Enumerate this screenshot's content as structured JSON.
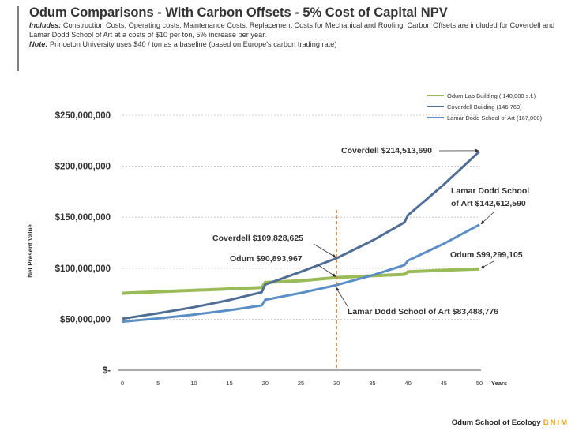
{
  "header": {
    "title": "Odum Comparisons - With Carbon Offsets - 5% Cost of Capital NPV",
    "includes_label": "Includes:",
    "includes_text": " Construction Costs, Operating costs, Maintenance Costs, Replacement Costs for Mechanical and Roofing. Carbon Offsets are included for Coverdell and Lamar Dodd School of Art at a costs of $10 per ton, 5% increase per year.",
    "note_label": "Note:",
    "note_text": " Princeton University uses $40 / ton as a baseline (based on Europe's carbon trading rate)"
  },
  "footer": {
    "org": "Odum School of Ecology",
    "brand": "BNIM"
  },
  "colors": {
    "odum": "#9bbb59",
    "coverdell": "#4f6d95",
    "lamar": "#5b8ec6",
    "marker": "#e07b2a",
    "grid": "#bdbdbd"
  },
  "chart_data": {
    "type": "line",
    "xlabel": "Years",
    "ylabel": "Net Present Value",
    "xlim": [
      0,
      50
    ],
    "ylim": [
      0,
      250000000
    ],
    "x_ticks": [
      "0",
      "5",
      "10",
      "15",
      "20",
      "25",
      "30",
      "35",
      "40",
      "45",
      "50"
    ],
    "y_ticks": [
      {
        "value": 250000000,
        "label": "$250,000,000"
      },
      {
        "value": 200000000,
        "label": "$200,000,000"
      },
      {
        "value": 150000000,
        "label": "$150,000,000"
      },
      {
        "value": 100000000,
        "label": "$100,000,000"
      },
      {
        "value": 50000000,
        "label": "$50,000,000"
      },
      {
        "value": 0,
        "label": "$-"
      }
    ],
    "grid": "horizontal-dashed",
    "legend_position": "top-right",
    "reference_line": {
      "x": 30,
      "style": "dashed"
    },
    "series": [
      {
        "name": "Odum Lab Building ( 140,000 s.f.)",
        "color_key": "odum",
        "points": [
          [
            0,
            75500000
          ],
          [
            5,
            76900000
          ],
          [
            10,
            78300000
          ],
          [
            15,
            79700000
          ],
          [
            19.5,
            81000000
          ],
          [
            20,
            86000000
          ],
          [
            25,
            87800000
          ],
          [
            30,
            90893967
          ],
          [
            35,
            92600000
          ],
          [
            39.5,
            94000000
          ],
          [
            40,
            96500000
          ],
          [
            45,
            98000000
          ],
          [
            50,
            99299105
          ]
        ]
      },
      {
        "name": "Coverdell Building (146,769)",
        "color_key": "coverdell",
        "points": [
          [
            0,
            50500000
          ],
          [
            5,
            55800000
          ],
          [
            10,
            61800000
          ],
          [
            15,
            68800000
          ],
          [
            19.5,
            76500000
          ],
          [
            20,
            84000000
          ],
          [
            25,
            96500000
          ],
          [
            30,
            109828625
          ],
          [
            35,
            127000000
          ],
          [
            39.5,
            145000000
          ],
          [
            40,
            152000000
          ],
          [
            45,
            182000000
          ],
          [
            50,
            214513690
          ]
        ]
      },
      {
        "name": "Lamar Dodd School of Art (167,000)",
        "color_key": "lamar",
        "points": [
          [
            0,
            47500000
          ],
          [
            5,
            50800000
          ],
          [
            10,
            54500000
          ],
          [
            15,
            58800000
          ],
          [
            19.5,
            63500000
          ],
          [
            20,
            69000000
          ],
          [
            25,
            75800000
          ],
          [
            30,
            83488776
          ],
          [
            35,
            93000000
          ],
          [
            39.5,
            103000000
          ],
          [
            40,
            107500000
          ],
          [
            45,
            124000000
          ],
          [
            50,
            142612590
          ]
        ]
      }
    ],
    "annotations": [
      {
        "text": "Coverdell $214,513,690",
        "target": [
          50,
          214513690
        ]
      },
      {
        "text": "Lamar Dodd School",
        "line2": "of Art $142,612,590",
        "target": [
          50,
          142612590
        ]
      },
      {
        "text": "Coverdell $109,828,625",
        "target": [
          30,
          109828625
        ]
      },
      {
        "text": "Odum $90,893,967",
        "target": [
          30,
          90893967
        ]
      },
      {
        "text": "Odum $99,299,105",
        "target": [
          50,
          99299105
        ]
      },
      {
        "text": "Lamar Dodd School of Art $83,488,776",
        "target": [
          30,
          83488776
        ]
      }
    ]
  }
}
